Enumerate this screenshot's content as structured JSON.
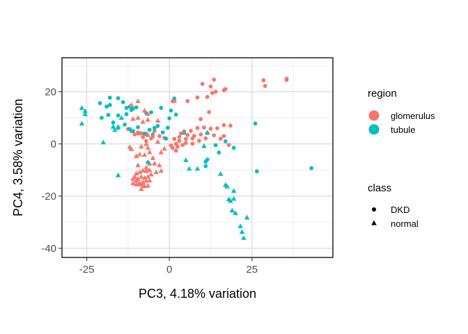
{
  "chart_data": {
    "type": "scatter",
    "xlabel": "PC3, 4.18% variation",
    "ylabel": "PC4, 3.58% variation",
    "xlim": [
      -32.5,
      49.5
    ],
    "ylim": [
      -43.5,
      33
    ],
    "x_ticks": [
      -25,
      0,
      25
    ],
    "x_tick_labels": [
      "-25",
      "0",
      "25"
    ],
    "y_ticks": [
      -40,
      -20,
      0,
      20
    ],
    "y_tick_labels": [
      "-40",
      "-20",
      "0",
      "20"
    ],
    "grid": true,
    "legend_placement": "right",
    "legend": {
      "color_title": "region",
      "color_entries": [
        {
          "label": "glomerulus",
          "color": "#F8766D"
        },
        {
          "label": "tubule",
          "color": "#00BFC4"
        }
      ],
      "shape_title": "class",
      "shape_entries": [
        {
          "label": "DKD",
          "shape": "circle"
        },
        {
          "label": "normal",
          "shape": "triangle"
        }
      ]
    },
    "series": [
      {
        "name": "glomerulus",
        "points": [
          [
            28.5,
            24.4
          ],
          [
            35.5,
            25.0
          ],
          [
            35.5,
            24.5
          ],
          [
            29.0,
            22.2
          ],
          [
            13.5,
            24.6
          ],
          [
            10.0,
            23.0
          ],
          [
            12.5,
            22.0
          ],
          [
            17.0,
            21.0
          ],
          [
            16.5,
            20.5
          ],
          [
            14.0,
            20.0
          ],
          [
            13.0,
            19.5
          ],
          [
            11.5,
            18.0
          ],
          [
            1.5,
            17.0
          ],
          [
            1.0,
            16.3
          ],
          [
            5.5,
            16.4
          ],
          [
            8.5,
            17.8
          ],
          [
            12.0,
            12.2
          ],
          [
            9.5,
            9.5
          ],
          [
            18.5,
            7.0
          ],
          [
            16.5,
            7.2
          ],
          [
            14.5,
            6.0
          ],
          [
            12.5,
            5.8
          ],
          [
            10.5,
            6.3
          ],
          [
            8.5,
            6.1
          ],
          [
            6.5,
            5.0
          ],
          [
            4.5,
            4.8
          ],
          [
            3.5,
            4.0
          ],
          [
            5.5,
            3.4
          ],
          [
            7.5,
            3.1
          ],
          [
            9.5,
            3.6
          ],
          [
            11.5,
            4.2
          ],
          [
            13.5,
            3.3
          ],
          [
            7.0,
            2.1
          ],
          [
            5.0,
            1.9
          ],
          [
            3.0,
            2.6
          ],
          [
            1.5,
            1.9
          ],
          [
            3.0,
            1.1
          ],
          [
            5.0,
            0.3
          ],
          [
            7.0,
            0.1
          ],
          [
            9.0,
            1.2
          ],
          [
            11.0,
            2.1
          ],
          [
            2.0,
            0.0
          ],
          [
            4.0,
            -0.4
          ],
          [
            2.5,
            -1.1
          ],
          [
            1.0,
            -1.6
          ],
          [
            2.0,
            -2.6
          ],
          [
            15.5,
            2.0
          ],
          [
            16.5,
            3.0
          ],
          [
            0.5,
            -0.6
          ],
          [
            18.0,
            -0.4
          ],
          [
            -4.5,
            5.0
          ],
          [
            -6.0,
            5.4
          ],
          [
            -8.5,
            4.1
          ],
          [
            -7.0,
            3.9
          ],
          [
            -9.5,
            4.4
          ],
          [
            -10.5,
            3.6
          ],
          [
            -12.5,
            5.7
          ],
          [
            -11.5,
            4.9
          ],
          [
            -3.0,
            3.0
          ],
          [
            -1.5,
            2.3
          ],
          [
            -5.5,
            2.1
          ],
          [
            -8.0,
            2.6
          ],
          [
            -7.0,
            1.1
          ]
        ]
      },
      {
        "name": "tubule",
        "points": [
          [
            26.0,
            7.8
          ],
          [
            43.0,
            -9.3
          ],
          [
            26.5,
            -10.5
          ],
          [
            19.5,
            -1.5
          ],
          [
            15.0,
            -3.3
          ],
          [
            14.0,
            -0.5
          ],
          [
            17.0,
            1.0
          ],
          [
            11.5,
            -6.0
          ],
          [
            11.0,
            -6.8
          ],
          [
            11.0,
            -8.5
          ],
          [
            -1.0,
            2.0
          ],
          [
            -2.0,
            4.4
          ],
          [
            -3.5,
            6.9
          ],
          [
            -4.5,
            6.1
          ],
          [
            -6.0,
            5.4
          ],
          [
            -7.5,
            3.9
          ],
          [
            -9.5,
            6.4
          ],
          [
            -11.0,
            4.9
          ],
          [
            -12.0,
            5.7
          ],
          [
            -13.5,
            7.4
          ],
          [
            -15.5,
            6.1
          ],
          [
            -17.0,
            8.2
          ],
          [
            -18.5,
            11.1
          ],
          [
            -20.5,
            10.0
          ],
          [
            -19.0,
            14.3
          ],
          [
            -18.0,
            14.9
          ],
          [
            -18.0,
            17.7
          ],
          [
            -15.5,
            17.5
          ],
          [
            -14.0,
            16.0
          ],
          [
            -12.0,
            14.3
          ],
          [
            -11.5,
            13.0
          ],
          [
            -13.0,
            11.4
          ],
          [
            -10.0,
            14.0
          ],
          [
            -7.0,
            11.8
          ],
          [
            -5.5,
            12.1
          ],
          [
            -2.5,
            13.8
          ],
          [
            0.5,
            12.8
          ],
          [
            1.5,
            17.4
          ],
          [
            2.0,
            11.2
          ],
          [
            0.0,
            9.8
          ],
          [
            -0.5,
            6.2
          ],
          [
            -5.0,
            3.6
          ],
          [
            -15.5,
            10.9
          ],
          [
            -13.0,
            13.8
          ],
          [
            -11.0,
            13.5
          ],
          [
            -21.0,
            15.6
          ]
        ]
      },
      {
        "name": "glomerulus",
        "points": [
          [
            1.5,
            16.5
          ],
          [
            -9.5,
            16.4
          ],
          [
            -11.5,
            15.0
          ],
          [
            -7.5,
            12.8
          ],
          [
            -6.5,
            11.5
          ],
          [
            -11.0,
            9.6
          ],
          [
            -9.5,
            10.0
          ],
          [
            -6.5,
            9.3
          ],
          [
            -3.5,
            8.9
          ],
          [
            -8.0,
            8.5
          ],
          [
            -9.5,
            4.0
          ],
          [
            -6.5,
            3.4
          ],
          [
            -5.0,
            3.0
          ],
          [
            -3.5,
            0.8
          ],
          [
            -2.5,
            -3.2
          ],
          [
            -1.5,
            -1.8
          ],
          [
            -12.0,
            -1.2
          ],
          [
            -11.5,
            -2.0
          ],
          [
            -8.5,
            -1.0
          ],
          [
            -7.0,
            0.0
          ],
          [
            -6.5,
            -1.5
          ],
          [
            -9.0,
            -4.0
          ],
          [
            -10.0,
            -4.7
          ],
          [
            -7.5,
            -4.2
          ],
          [
            -6.0,
            -3.2
          ],
          [
            -5.0,
            -5.4
          ],
          [
            -4.5,
            -7.5
          ],
          [
            -3.0,
            -8.2
          ],
          [
            -2.5,
            -10.3
          ],
          [
            -4.0,
            -10.8
          ],
          [
            -5.5,
            -11.7
          ],
          [
            -6.0,
            -10.0
          ],
          [
            -7.0,
            -10.4
          ],
          [
            -8.0,
            -10.2
          ],
          [
            -9.0,
            -10.8
          ],
          [
            -10.0,
            -11.3
          ],
          [
            -10.5,
            -12.6
          ],
          [
            -9.5,
            -13.4
          ],
          [
            -8.5,
            -12.6
          ],
          [
            -7.5,
            -13.0
          ],
          [
            -6.5,
            -12.6
          ],
          [
            -8.0,
            -14.7
          ],
          [
            -9.0,
            -15.5
          ],
          [
            -10.0,
            -15.5
          ],
          [
            -11.0,
            -15.1
          ],
          [
            -7.5,
            -16.2
          ],
          [
            -6.5,
            -16.0
          ],
          [
            -8.5,
            -17.3
          ],
          [
            -9.5,
            -8.2
          ],
          [
            -6.0,
            -7.6
          ],
          [
            -7.0,
            -9.1
          ],
          [
            -11.0,
            -13.4
          ],
          [
            -10.0,
            -14.1
          ],
          [
            -9.0,
            -15.0
          ],
          [
            -8.0,
            -15.8
          ],
          [
            -7.0,
            -14.1
          ],
          [
            -6.0,
            -14.0
          ]
        ]
      },
      {
        "name": "tubule",
        "points": [
          [
            -26.5,
            13.8
          ],
          [
            -25.5,
            12.6
          ],
          [
            -25.5,
            11.4
          ],
          [
            -26.5,
            7.8
          ],
          [
            -20.0,
            0.6
          ],
          [
            -16.5,
            5.4
          ],
          [
            -15.5,
            6.6
          ],
          [
            -17.0,
            6.6
          ],
          [
            -14.5,
            10.0
          ],
          [
            -15.5,
            -12.0
          ],
          [
            -6.5,
            -6.9
          ],
          [
            5.0,
            -6.2
          ],
          [
            6.0,
            -9.5
          ],
          [
            8.5,
            -9.5
          ],
          [
            15.5,
            -11.5
          ],
          [
            17.0,
            -15.7
          ],
          [
            17.5,
            -16.3
          ],
          [
            18.0,
            -21.2
          ],
          [
            19.5,
            -18.0
          ],
          [
            19.5,
            -21.0
          ],
          [
            18.5,
            -21.8
          ],
          [
            19.0,
            -25.5
          ],
          [
            20.0,
            -26.5
          ],
          [
            23.5,
            -28.2
          ],
          [
            21.5,
            -31.5
          ],
          [
            22.0,
            -33.7
          ],
          [
            22.5,
            -36.0
          ],
          [
            10.5,
            -0.8
          ],
          [
            11.5,
            4.3
          ],
          [
            4.5,
            4.3
          ]
        ]
      }
    ],
    "series_shapes": [
      "circle",
      "circle",
      "triangle",
      "triangle"
    ],
    "series_colors": [
      "#F8766D",
      "#00BFC4",
      "#F8766D",
      "#00BFC4"
    ]
  }
}
